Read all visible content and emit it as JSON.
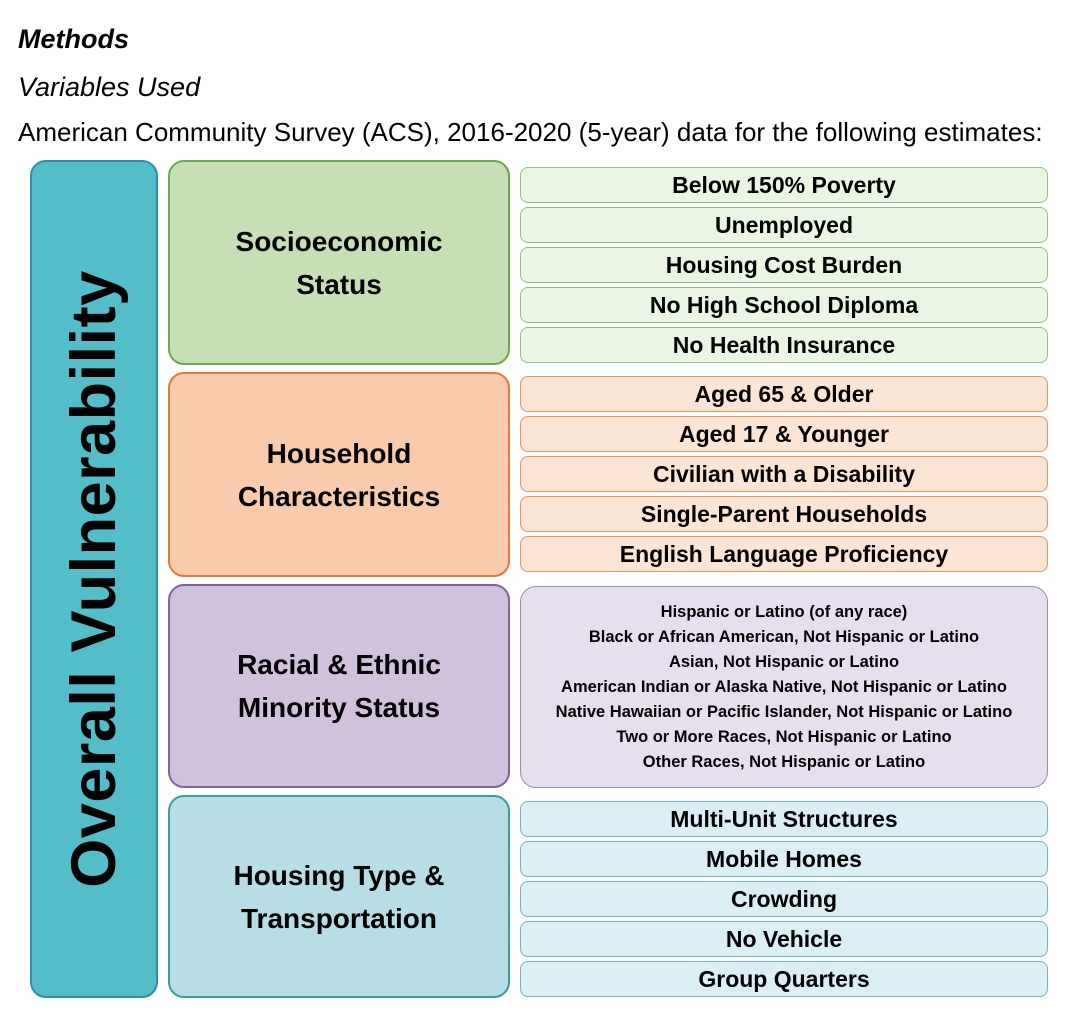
{
  "heading": {
    "methods": "Methods",
    "variables_used": "Variables Used",
    "description": "American Community Survey (ACS), 2016-2020 (5-year) data for the following estimates:"
  },
  "overall": {
    "label": "Overall Vulnerability",
    "color": "#53bdc9"
  },
  "themes": [
    {
      "label": "Socioeconomic\nStatus",
      "color": "#c6dfb4",
      "variables": [
        "Below 150% Poverty",
        "Unemployed",
        "Housing Cost Burden",
        "No High School Diploma",
        "No Health Insurance"
      ]
    },
    {
      "label": "Household\nCharacteristics",
      "color": "#f8cbad",
      "variables": [
        "Aged 65 & Older",
        "Aged 17 & Younger",
        "Civilian with a Disability",
        "Single-Parent Households",
        "English Language Proficiency"
      ]
    },
    {
      "label": "Racial & Ethnic\nMinority Status",
      "color": "#d0c1dc",
      "variables": [
        "Hispanic or Latino (of any race)",
        "Black or African American, Not Hispanic or Latino",
        "Asian, Not Hispanic or Latino",
        "American Indian or Alaska Native, Not Hispanic or Latino",
        "Native Hawaiian or Pacific Islander, Not Hispanic or Latino",
        "Two or More Races, Not Hispanic or Latino",
        "Other Races, Not Hispanic or Latino"
      ]
    },
    {
      "label": "Housing Type &\nTransportation",
      "color": "#b7dde6",
      "variables": [
        "Multi-Unit Structures",
        "Mobile Homes",
        "Crowding",
        "No Vehicle",
        "Group Quarters"
      ]
    }
  ]
}
